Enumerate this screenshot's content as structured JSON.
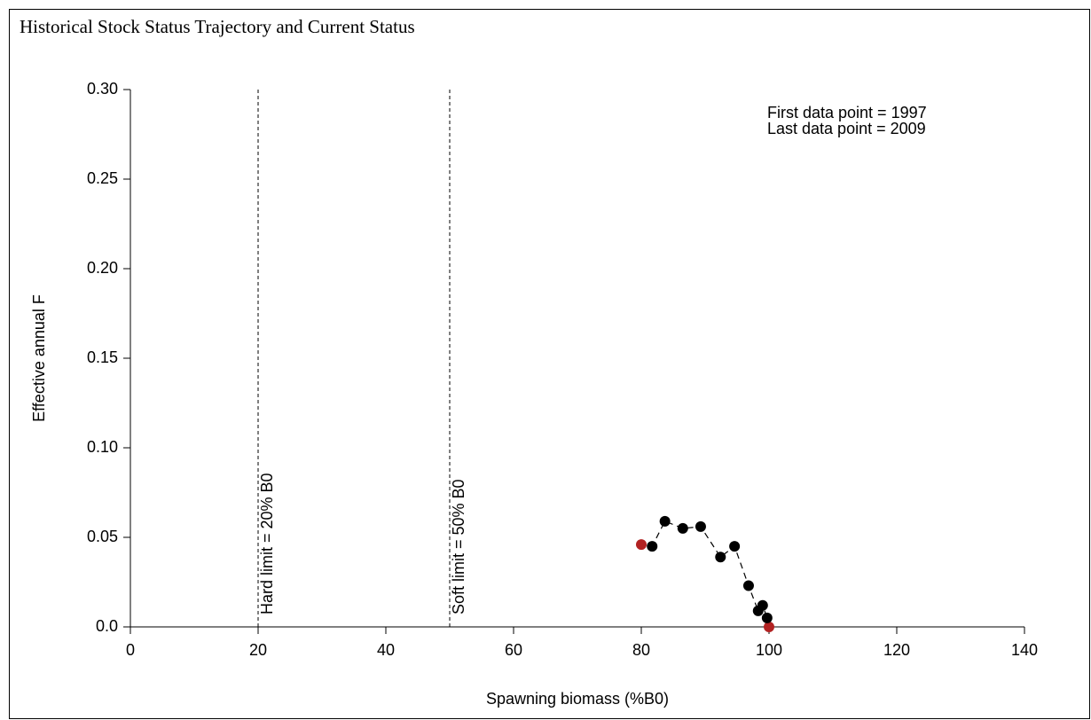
{
  "chart_data": {
    "type": "scatter",
    "title": "Historical Stock Status Trajectory and Current Status",
    "x_label": "Spawning biomass (%B0)",
    "y_label": "Effective annual F",
    "annotations": [
      "First data point = 1997",
      "Last data point = 2009"
    ],
    "reference_lines": [
      {
        "x": 20,
        "label": "Hard limit = 20% B0"
      },
      {
        "x": 50,
        "label": "Soft limit = 50% B0"
      }
    ],
    "x": [
      100,
      99.7,
      99,
      98.3,
      96.8,
      94.6,
      92.4,
      89.3,
      86.5,
      83.7,
      81.7,
      80
    ],
    "series": [
      {
        "color": "#000000",
        "endpoint_color": "#b22222",
        "values": [
          0.0,
          0.005,
          0.012,
          0.009,
          0.023,
          0.045,
          0.039,
          0.056,
          0.055,
          0.059,
          0.045,
          0.046
        ]
      }
    ],
    "xlim": [
      0,
      140
    ],
    "xticks": [
      0,
      20,
      40,
      60,
      80,
      100,
      120,
      140
    ],
    "ylim": [
      0,
      0.3
    ],
    "yticks": [
      {
        "value": 0,
        "label": "0.0"
      },
      0.05,
      {
        "value": 0.1,
        "label": "0.10"
      },
      0.15,
      {
        "value": 0.2,
        "label": "0.20"
      },
      0.25,
      {
        "value": 0.3,
        "label": "0.30"
      }
    ]
  }
}
